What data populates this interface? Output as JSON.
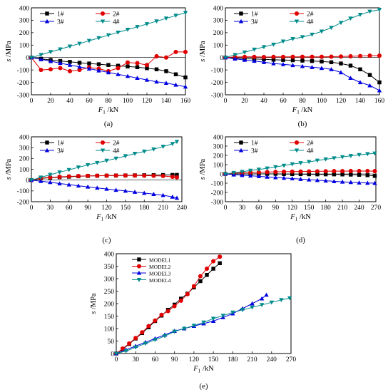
{
  "colors": {
    "1#": "#000000",
    "2#": "#e00000",
    "3#": "#0000e0",
    "4#": "#008b8b",
    "MODEL1": "#000000",
    "MODEL2": "#e00000",
    "MODEL3": "#0000e0",
    "MODEL4": "#008b8b"
  },
  "chart_data": [
    {
      "type": "line",
      "label": "(a)",
      "ylabel": "s /MPa",
      "xlabel": "F1 /kN",
      "xlim": [
        0,
        160
      ],
      "ylim": [
        -300,
        400
      ],
      "xticks": [
        0,
        20,
        40,
        60,
        80,
        100,
        120,
        140,
        160
      ],
      "yticks": [
        -300,
        -200,
        -100,
        0,
        100,
        200,
        300,
        400
      ],
      "legend_position": "top",
      "series": [
        {
          "name": "1#",
          "marker": "square",
          "x": [
            0,
            10,
            20,
            30,
            40,
            50,
            60,
            70,
            80,
            90,
            100,
            110,
            120,
            130,
            140,
            150,
            160
          ],
          "values": [
            0,
            -10,
            -20,
            -28,
            -35,
            -42,
            -48,
            -54,
            -60,
            -66,
            -72,
            -78,
            -86,
            -95,
            -110,
            -135,
            -160
          ]
        },
        {
          "name": "2#",
          "marker": "circle",
          "x": [
            0,
            10,
            20,
            30,
            40,
            50,
            60,
            70,
            80,
            90,
            100,
            110,
            120,
            130,
            140,
            150,
            160
          ],
          "values": [
            0,
            -100,
            -95,
            -85,
            -110,
            -100,
            -80,
            -90,
            -110,
            -85,
            -40,
            -45,
            -60,
            10,
            0,
            45,
            45
          ]
        },
        {
          "name": "3#",
          "marker": "triangle-up",
          "x": [
            0,
            10,
            20,
            30,
            40,
            50,
            60,
            70,
            80,
            90,
            100,
            110,
            120,
            130,
            140,
            150,
            160
          ],
          "values": [
            0,
            -15,
            -30,
            -45,
            -60,
            -75,
            -90,
            -105,
            -120,
            -135,
            -150,
            -165,
            -180,
            -195,
            -205,
            -220,
            -235
          ]
        },
        {
          "name": "4#",
          "marker": "triangle-down",
          "x": [
            0,
            10,
            20,
            30,
            40,
            50,
            60,
            70,
            80,
            90,
            100,
            110,
            120,
            130,
            140,
            150,
            160
          ],
          "values": [
            0,
            22,
            45,
            67,
            90,
            112,
            135,
            157,
            180,
            202,
            225,
            247,
            270,
            292,
            315,
            338,
            360
          ]
        }
      ]
    },
    {
      "type": "line",
      "label": "(b)",
      "ylabel": "s /MPa",
      "xlabel": "F1 /kN",
      "xlim": [
        0,
        160
      ],
      "ylim": [
        -300,
        400
      ],
      "xticks": [
        0,
        20,
        40,
        60,
        80,
        100,
        120,
        140,
        160
      ],
      "yticks": [
        -300,
        -200,
        -100,
        0,
        100,
        200,
        300,
        400
      ],
      "legend_position": "top",
      "series": [
        {
          "name": "1#",
          "marker": "square",
          "x": [
            0,
            10,
            20,
            30,
            40,
            50,
            60,
            70,
            80,
            90,
            100,
            110,
            120,
            130,
            140,
            150,
            160
          ],
          "values": [
            0,
            -5,
            -10,
            -12,
            -15,
            -18,
            -20,
            -22,
            -25,
            -28,
            -32,
            -38,
            -48,
            -65,
            -95,
            -140,
            -200
          ]
        },
        {
          "name": "2#",
          "marker": "circle",
          "x": [
            0,
            10,
            20,
            30,
            40,
            50,
            60,
            70,
            80,
            90,
            100,
            110,
            120,
            130,
            140,
            150,
            160
          ],
          "values": [
            0,
            4,
            5,
            5,
            4,
            5,
            5,
            6,
            6,
            6,
            6,
            7,
            8,
            10,
            12,
            15,
            15
          ]
        },
        {
          "name": "3#",
          "marker": "triangle-up",
          "x": [
            0,
            10,
            20,
            30,
            40,
            50,
            60,
            70,
            80,
            90,
            100,
            110,
            120,
            130,
            140,
            150,
            160
          ],
          "values": [
            0,
            -10,
            -20,
            -28,
            -38,
            -48,
            -55,
            -62,
            -70,
            -78,
            -85,
            -95,
            -120,
            -165,
            -200,
            -225,
            -265
          ]
        },
        {
          "name": "4#",
          "marker": "triangle-down",
          "x": [
            0,
            10,
            20,
            30,
            40,
            50,
            60,
            70,
            80,
            90,
            100,
            110,
            120,
            130,
            140,
            150,
            160
          ],
          "values": [
            0,
            22,
            42,
            65,
            85,
            105,
            130,
            150,
            165,
            185,
            210,
            240,
            280,
            315,
            345,
            370,
            385
          ]
        }
      ]
    },
    {
      "type": "line",
      "label": "(c)",
      "ylabel": "s /MPa",
      "xlabel": "F1 /kN",
      "xlim": [
        0,
        240
      ],
      "ylim": [
        -200,
        400
      ],
      "xticks": [
        0,
        30,
        60,
        90,
        120,
        150,
        180,
        210,
        240
      ],
      "yticks": [
        -200,
        -100,
        0,
        100,
        200,
        300,
        400
      ],
      "legend_position": "top",
      "series": [
        {
          "name": "1#",
          "marker": "square",
          "x": [
            0,
            15,
            30,
            45,
            60,
            75,
            90,
            105,
            120,
            135,
            150,
            165,
            180,
            195,
            210,
            225,
            232
          ],
          "values": [
            0,
            15,
            22,
            27,
            31,
            35,
            38,
            40,
            41,
            42,
            43,
            44,
            45,
            46,
            47,
            48,
            48
          ]
        },
        {
          "name": "2#",
          "marker": "circle",
          "x": [
            0,
            15,
            30,
            45,
            60,
            75,
            90,
            105,
            120,
            135,
            150,
            165,
            180,
            195,
            210,
            225,
            232
          ],
          "values": [
            0,
            18,
            25,
            30,
            34,
            37,
            39,
            40,
            41,
            42,
            42,
            42,
            41,
            40,
            38,
            30,
            25
          ]
        },
        {
          "name": "3#",
          "marker": "triangle-up",
          "x": [
            0,
            15,
            30,
            45,
            60,
            75,
            90,
            105,
            120,
            135,
            150,
            165,
            180,
            195,
            210,
            225,
            232
          ],
          "values": [
            0,
            -10,
            -20,
            -32,
            -42,
            -52,
            -62,
            -72,
            -82,
            -92,
            -100,
            -110,
            -120,
            -130,
            -140,
            -155,
            -165
          ]
        },
        {
          "name": "4#",
          "marker": "triangle-down",
          "x": [
            0,
            15,
            30,
            45,
            60,
            75,
            90,
            105,
            120,
            135,
            150,
            165,
            180,
            195,
            210,
            225,
            232
          ],
          "values": [
            0,
            25,
            50,
            72,
            95,
            118,
            140,
            160,
            180,
            200,
            222,
            245,
            265,
            285,
            310,
            335,
            355
          ]
        }
      ]
    },
    {
      "type": "line",
      "label": "(d)",
      "ylabel": "s /MPa",
      "xlabel": "F1 /kN",
      "xlim": [
        0,
        270
      ],
      "ylim": [
        -300,
        400
      ],
      "xticks": [
        0,
        30,
        60,
        90,
        120,
        150,
        180,
        210,
        240,
        270
      ],
      "yticks": [
        -300,
        -200,
        -100,
        0,
        100,
        200,
        300,
        400
      ],
      "legend_position": "top",
      "series": [
        {
          "name": "1#",
          "marker": "square",
          "x": [
            0,
            15,
            30,
            45,
            60,
            75,
            90,
            105,
            120,
            135,
            150,
            165,
            180,
            195,
            210,
            225,
            240,
            255,
            268
          ],
          "values": [
            0,
            0,
            0,
            0,
            0,
            0,
            0,
            -2,
            -2,
            -3,
            -4,
            -5,
            -5,
            -5,
            -6,
            -8,
            -10,
            -14,
            -22
          ]
        },
        {
          "name": "2#",
          "marker": "circle",
          "x": [
            0,
            15,
            30,
            45,
            60,
            75,
            90,
            105,
            120,
            135,
            150,
            165,
            180,
            195,
            210,
            225,
            240,
            255,
            268
          ],
          "values": [
            0,
            8,
            12,
            15,
            18,
            20,
            22,
            24,
            25,
            26,
            27,
            28,
            29,
            30,
            30,
            31,
            31,
            31,
            30
          ]
        },
        {
          "name": "3#",
          "marker": "triangle-up",
          "x": [
            0,
            15,
            30,
            45,
            60,
            75,
            90,
            105,
            120,
            135,
            150,
            165,
            180,
            195,
            210,
            225,
            240,
            255,
            268
          ],
          "values": [
            0,
            -8,
            -14,
            -20,
            -26,
            -32,
            -38,
            -44,
            -50,
            -56,
            -62,
            -68,
            -74,
            -80,
            -85,
            -90,
            -95,
            -98,
            -100
          ]
        },
        {
          "name": "4#",
          "marker": "triangle-down",
          "x": [
            0,
            15,
            30,
            45,
            60,
            75,
            90,
            105,
            120,
            135,
            150,
            165,
            180,
            195,
            210,
            225,
            240,
            255,
            268
          ],
          "values": [
            0,
            12,
            24,
            36,
            48,
            60,
            75,
            90,
            105,
            118,
            130,
            145,
            158,
            170,
            182,
            195,
            205,
            215,
            222
          ]
        }
      ]
    },
    {
      "type": "line",
      "label": "(e)",
      "ylabel": "s /MPa",
      "xlabel": "F1 /kN",
      "xlim": [
        0,
        270
      ],
      "ylim": [
        0,
        400
      ],
      "xticks": [
        0,
        30,
        60,
        90,
        120,
        150,
        180,
        210,
        240,
        270
      ],
      "yticks": [
        0,
        50,
        100,
        150,
        200,
        250,
        300,
        350,
        400
      ],
      "legend_position": "top-left",
      "series": [
        {
          "name": "MODEL1",
          "marker": "square",
          "x": [
            0,
            10,
            20,
            30,
            40,
            50,
            60,
            70,
            80,
            90,
            100,
            110,
            120,
            130,
            140,
            150,
            160
          ],
          "values": [
            0,
            18,
            38,
            60,
            82,
            105,
            130,
            152,
            175,
            196,
            220,
            240,
            265,
            290,
            315,
            340,
            362
          ]
        },
        {
          "name": "MODEL2",
          "marker": "circle",
          "x": [
            0,
            10,
            20,
            30,
            40,
            50,
            60,
            70,
            80,
            90,
            100,
            110,
            120,
            130,
            140,
            150,
            160
          ],
          "values": [
            0,
            20,
            40,
            62,
            85,
            110,
            132,
            155,
            170,
            190,
            212,
            238,
            270,
            310,
            340,
            370,
            388
          ]
        },
        {
          "name": "MODEL3",
          "marker": "triangle-up",
          "x": [
            0,
            15,
            30,
            45,
            60,
            75,
            90,
            105,
            120,
            135,
            150,
            165,
            180,
            195,
            210,
            225,
            232
          ],
          "values": [
            0,
            15,
            30,
            45,
            60,
            75,
            90,
            100,
            110,
            120,
            130,
            145,
            160,
            180,
            200,
            220,
            235
          ]
        },
        {
          "name": "MODEL4",
          "marker": "triangle-down",
          "x": [
            0,
            15,
            30,
            45,
            60,
            75,
            90,
            105,
            120,
            135,
            150,
            165,
            180,
            195,
            210,
            225,
            240,
            255,
            268
          ],
          "values": [
            0,
            10,
            25,
            40,
            55,
            70,
            88,
            100,
            112,
            125,
            140,
            152,
            165,
            175,
            185,
            195,
            205,
            215,
            222
          ]
        }
      ]
    }
  ]
}
